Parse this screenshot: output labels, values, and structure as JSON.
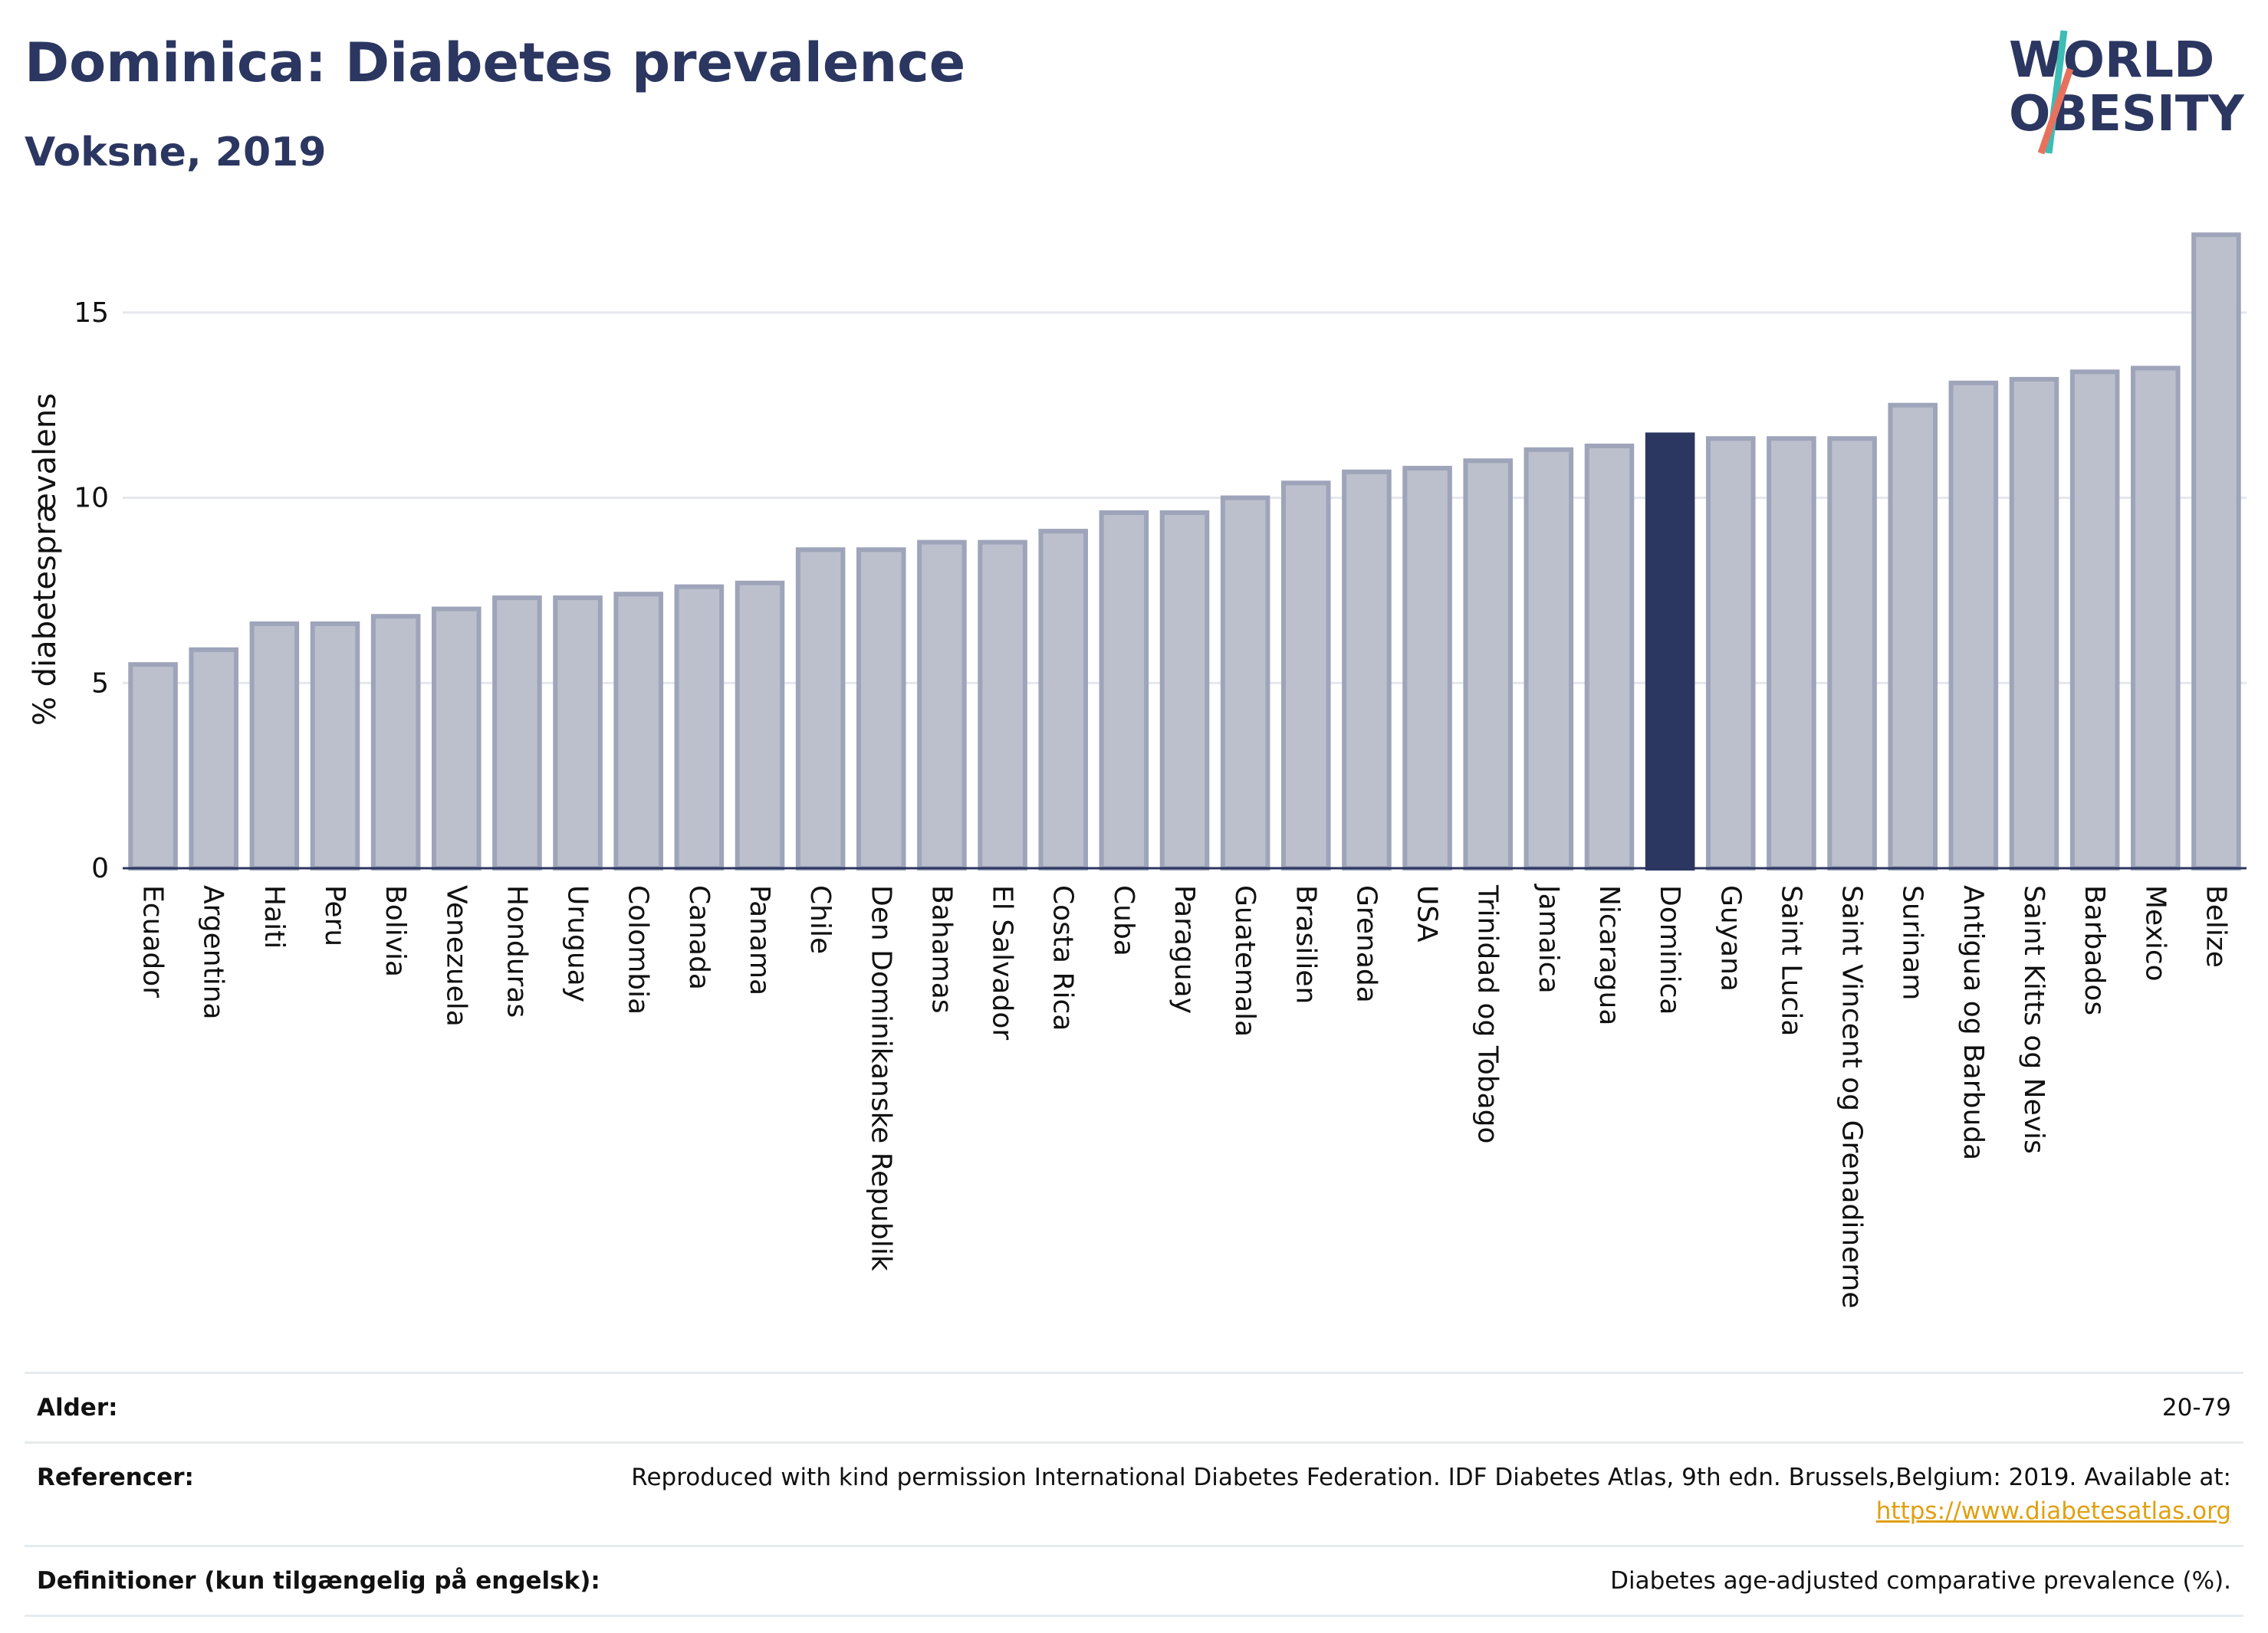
{
  "header": {
    "title": "Dominica: Diabetes prevalence",
    "subtitle": "Voksne, 2019"
  },
  "logo": {
    "line1": "WORLD",
    "line2": "OBESITY",
    "colors": {
      "text": "#2b3661",
      "slash_teal": "#3cbcb4",
      "slash_coral": "#e8715e"
    }
  },
  "chart_data": {
    "type": "bar",
    "ylabel": "% diabetesprævalens",
    "xlabel": "",
    "ylim": [
      0,
      17.5
    ],
    "yticks": [
      0,
      5,
      10,
      15
    ],
    "grid": true,
    "highlight": "Dominica",
    "colors": {
      "bar": "#bcc0cd",
      "bar_stroke": "#9ea4b9",
      "highlight": "#2b3661"
    },
    "categories": [
      "Ecuador",
      "Argentina",
      "Haiti",
      "Peru",
      "Bolivia",
      "Venezuela",
      "Honduras",
      "Uruguay",
      "Colombia",
      "Canada",
      "Panama",
      "Chile",
      "Den Dominikanske Republik",
      "Bahamas",
      "El Salvador",
      "Costa Rica",
      "Cuba",
      "Paraguay",
      "Guatemala",
      "Brasilien",
      "Grenada",
      "USA",
      "Trinidad og Tobago",
      "Jamaica",
      "Nicaragua",
      "Dominica",
      "Guyana",
      "Saint Lucia",
      "Saint Vincent og Grenadinerne",
      "Surinam",
      "Antigua og Barbuda",
      "Saint Kitts og Nevis",
      "Barbados",
      "Mexico",
      "Belize"
    ],
    "values": [
      5.5,
      5.9,
      6.6,
      6.6,
      6.8,
      7.0,
      7.3,
      7.3,
      7.4,
      7.6,
      7.7,
      8.6,
      8.6,
      8.8,
      8.8,
      9.1,
      9.6,
      9.6,
      10.0,
      10.4,
      10.7,
      10.8,
      11.0,
      11.3,
      11.4,
      11.7,
      11.6,
      11.6,
      11.6,
      12.5,
      13.1,
      13.2,
      13.4,
      13.5,
      17.1
    ]
  },
  "footer": {
    "age_label": "Alder:",
    "age_value": "20-79",
    "ref_label": "Referencer:",
    "ref_text": "Reproduced with kind permission International Diabetes Federation. IDF Diabetes Atlas, 9th edn. Brussels,Belgium: 2019. Available at:",
    "ref_link": "https://www.diabetesatlas.org",
    "def_label": "Definitioner (kun tilgængelig på engelsk):",
    "def_value": "Diabetes age-adjusted comparative prevalence (%)."
  }
}
